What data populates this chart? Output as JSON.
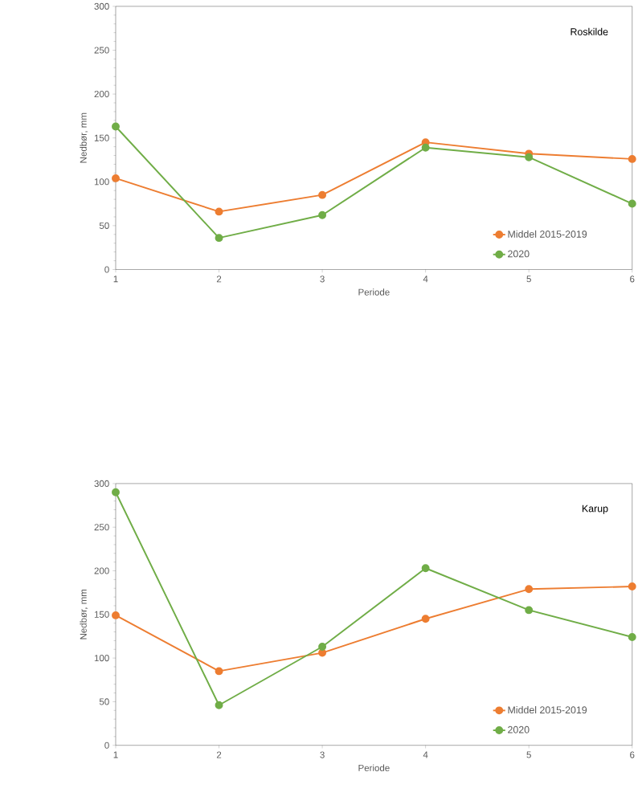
{
  "chart_data": [
    {
      "type": "line",
      "xlabel": "Periode",
      "ylabel": "Nedbør, mm",
      "annotations": [
        "Roskilde"
      ],
      "x": [
        1,
        2,
        3,
        4,
        5,
        6
      ],
      "xlim": [
        1,
        6
      ],
      "xticks": [
        1,
        2,
        3,
        4,
        5,
        6
      ],
      "ylim": [
        0,
        300
      ],
      "yticks": [
        0,
        50,
        100,
        150,
        200,
        250,
        300
      ],
      "grid": false,
      "legend": "bottom right",
      "marker": "circle",
      "line_style": "solid",
      "series": [
        {
          "name": "Middel 2015-2019",
          "color": "#ed7d31",
          "values": [
            104,
            66,
            85,
            145,
            132,
            126
          ]
        },
        {
          "name": "2020",
          "color": "#70ad47",
          "values": [
            163,
            36,
            62,
            139,
            128,
            75
          ]
        }
      ]
    },
    {
      "type": "line",
      "xlabel": "Periode",
      "ylabel": "Nedbør, mm",
      "annotations": [
        "Karup"
      ],
      "x": [
        1,
        2,
        3,
        4,
        5,
        6
      ],
      "xlim": [
        1,
        6
      ],
      "xticks": [
        1,
        2,
        3,
        4,
        5,
        6
      ],
      "ylim": [
        0,
        300
      ],
      "yticks": [
        0,
        50,
        100,
        150,
        200,
        250,
        300
      ],
      "grid": false,
      "legend": "bottom right",
      "marker": "circle",
      "line_style": "solid",
      "series": [
        {
          "name": "Middel 2015-2019",
          "color": "#ed7d31",
          "values": [
            149,
            85,
            106,
            145,
            179,
            182
          ]
        },
        {
          "name": "2020",
          "color": "#70ad47",
          "values": [
            290,
            46,
            113,
            203,
            155,
            124
          ]
        }
      ]
    }
  ]
}
